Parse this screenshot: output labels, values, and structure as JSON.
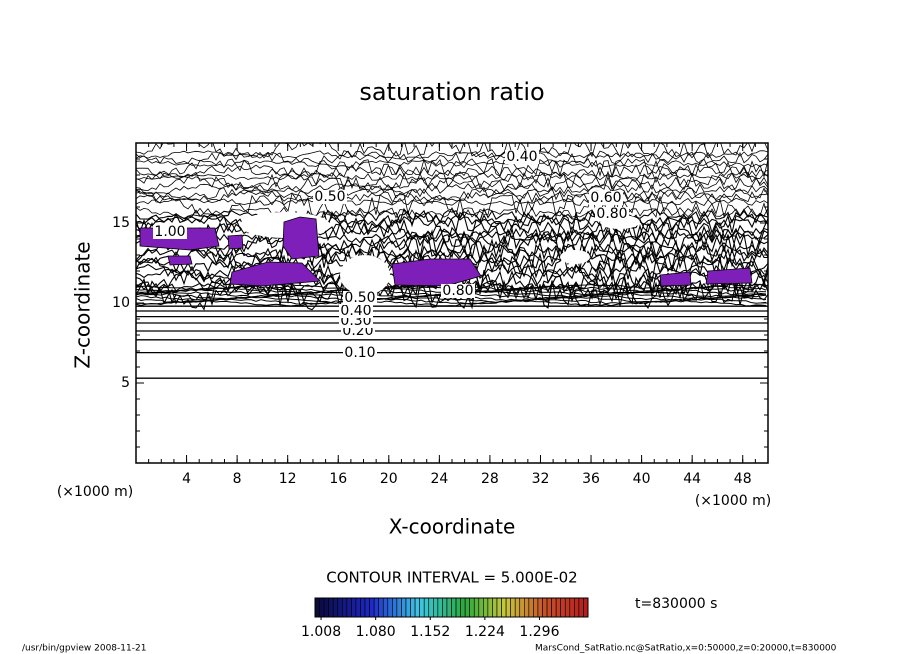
{
  "chart_data": {
    "type": "contour",
    "title": "saturation ratio",
    "x_label": "X-coordinate",
    "y_label": "Z-coordinate",
    "x_unit": "(×1000 m)",
    "xlim": [
      0,
      50
    ],
    "xticks": [
      4,
      8,
      12,
      16,
      20,
      24,
      28,
      32,
      36,
      40,
      44,
      48
    ],
    "ylim": [
      0,
      20
    ],
    "yticks": [
      5,
      10,
      15
    ],
    "contour_lines": [
      {
        "level": 0.05,
        "z": 5.3
      },
      {
        "level": 0.1,
        "z": 6.9
      },
      {
        "level": 0.15,
        "z": 7.7
      },
      {
        "level": 0.2,
        "z": 8.25
      },
      {
        "level": 0.25,
        "z": 8.75
      },
      {
        "level": 0.3,
        "z": 9.15
      },
      {
        "level": 0.35,
        "z": 9.5
      },
      {
        "level": 0.4,
        "z": 9.8
      }
    ],
    "contour_labels": [
      {
        "value": 0.1,
        "label": "0.10"
      },
      {
        "value": 0.2,
        "label": "0.20"
      },
      {
        "value": 0.3,
        "label": "0.30"
      },
      {
        "value": 0.4,
        "label": "0.40"
      },
      {
        "value": 0.5,
        "label": "0.50"
      },
      {
        "value": 0.4,
        "label": "0.40"
      },
      {
        "value": 0.6,
        "label": "0.60"
      },
      {
        "value": 0.8,
        "label": "0.80"
      },
      {
        "value": 1.0,
        "label": "1.00"
      },
      {
        "value": 0.5,
        "label": "0.50"
      },
      {
        "value": 0.8,
        "label": "0.80"
      }
    ],
    "contour_interval_text": "CONTOUR INTERVAL = 5.000E-02",
    "colorbar": {
      "lim": [
        1.0,
        1.36
      ],
      "ticks": [
        {
          "value": 1.008,
          "label": "1.008"
        },
        {
          "value": 1.08,
          "label": "1.080"
        },
        {
          "value": 1.152,
          "label": "1.152"
        },
        {
          "value": 1.224,
          "label": "1.224"
        },
        {
          "value": 1.296,
          "label": "1.296"
        }
      ]
    },
    "region_color": "#7d1fb8",
    "time_label": "t=830000 s",
    "footer_left": "/usr/bin/gpview   2008-11-21",
    "footer_right": "MarsCond_SatRatio.nc@SatRatio,x=0:50000,z=0:20000,t=830000"
  }
}
